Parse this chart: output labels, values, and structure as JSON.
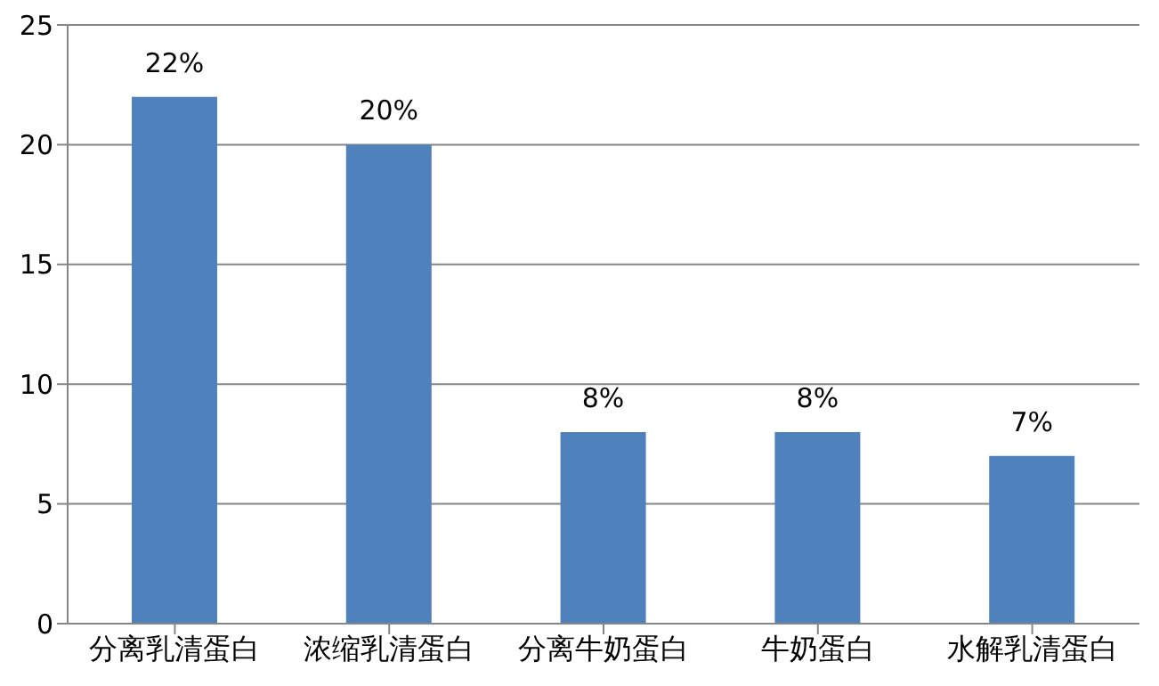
{
  "chart_data": {
    "type": "bar",
    "categories": [
      "分离乳清蛋白",
      "浓缩乳清蛋白",
      "分离牛奶蛋白",
      "牛奶蛋白",
      "水解乳清蛋白"
    ],
    "values": [
      22,
      20,
      8,
      8,
      7
    ],
    "value_labels": [
      "22%",
      "20%",
      "8%",
      "8%",
      "7%"
    ],
    "color": "#4f81bd",
    "ylim": [
      0,
      25
    ],
    "yticks": [
      0,
      5,
      10,
      15,
      20,
      25
    ],
    "grid": "y"
  }
}
